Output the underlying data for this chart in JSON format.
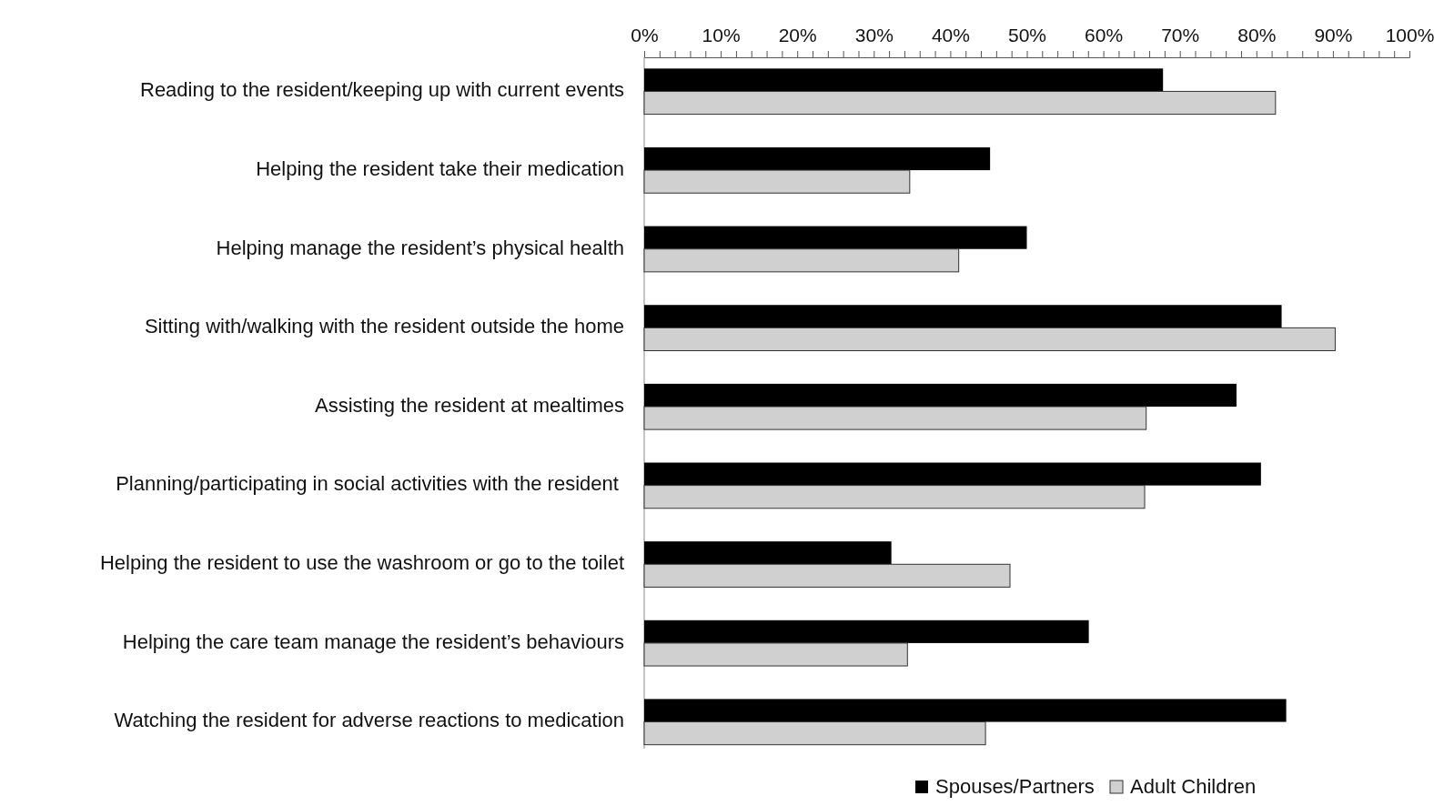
{
  "chart_data": {
    "type": "bar",
    "orientation": "horizontal",
    "categories": [
      "Reading to the resident/keeping up with current events",
      "Helping the resident take their medication",
      "Helping manage the resident’s physical health",
      "Sitting with/walking with the resident outside the home",
      "Assisting the resident at mealtimes",
      "Planning/participating in social activities with the resident ",
      "Helping the resident to use the washroom or go to the toilet",
      "Helping the care team manage the resident’s behaviours",
      "Watching the resident for adverse reactions to medication"
    ],
    "series": [
      {
        "name": "Spouses/Partners",
        "color": "#000000",
        "values": [
          67.8,
          45.2,
          50.0,
          83.3,
          77.4,
          80.6,
          32.3,
          58.1,
          83.9
        ]
      },
      {
        "name": "Adult Children",
        "color": "#d0d0d0",
        "values": [
          82.5,
          34.7,
          41.1,
          90.3,
          65.6,
          65.4,
          47.8,
          34.4,
          44.6
        ]
      }
    ],
    "xlim": [
      0,
      100
    ],
    "xticks": [
      {
        "value": 0,
        "label": "0%"
      },
      {
        "value": 2,
        "label": null
      },
      {
        "value": 4,
        "label": null
      },
      {
        "value": 6,
        "label": null
      },
      {
        "value": 8,
        "label": null
      },
      {
        "value": 10,
        "label": "10%"
      },
      {
        "value": 12,
        "label": null
      },
      {
        "value": 14,
        "label": null
      },
      {
        "value": 16,
        "label": null
      },
      {
        "value": 18,
        "label": null
      },
      {
        "value": 20,
        "label": "20%"
      },
      {
        "value": 22,
        "label": null
      },
      {
        "value": 24,
        "label": null
      },
      {
        "value": 26,
        "label": null
      },
      {
        "value": 28,
        "label": null
      },
      {
        "value": 30,
        "label": "30%"
      },
      {
        "value": 32,
        "label": null
      },
      {
        "value": 34,
        "label": null
      },
      {
        "value": 36,
        "label": null
      },
      {
        "value": 38,
        "label": null
      },
      {
        "value": 40,
        "label": "40%"
      },
      {
        "value": 42,
        "label": null
      },
      {
        "value": 44,
        "label": null
      },
      {
        "value": 46,
        "label": null
      },
      {
        "value": 48,
        "label": null
      },
      {
        "value": 50,
        "label": "50%"
      },
      {
        "value": 52,
        "label": null
      },
      {
        "value": 54,
        "label": null
      },
      {
        "value": 56,
        "label": null
      },
      {
        "value": 58,
        "label": null
      },
      {
        "value": 60,
        "label": "60%"
      },
      {
        "value": 62,
        "label": null
      },
      {
        "value": 64,
        "label": null
      },
      {
        "value": 66,
        "label": null
      },
      {
        "value": 68,
        "label": null
      },
      {
        "value": 70,
        "label": "70%"
      },
      {
        "value": 72,
        "label": null
      },
      {
        "value": 74,
        "label": null
      },
      {
        "value": 76,
        "label": null
      },
      {
        "value": 78,
        "label": null
      },
      {
        "value": 80,
        "label": "80%"
      },
      {
        "value": 82,
        "label": null
      },
      {
        "value": 84,
        "label": null
      },
      {
        "value": 86,
        "label": null
      },
      {
        "value": 88,
        "label": null
      },
      {
        "value": 90,
        "label": "90%"
      },
      {
        "value": 92,
        "label": null
      },
      {
        "value": 94,
        "label": null
      },
      {
        "value": 96,
        "label": null
      },
      {
        "value": 98,
        "label": null
      },
      {
        "value": 100,
        "label": "100%"
      }
    ],
    "grid": false,
    "legend": "bottom"
  }
}
